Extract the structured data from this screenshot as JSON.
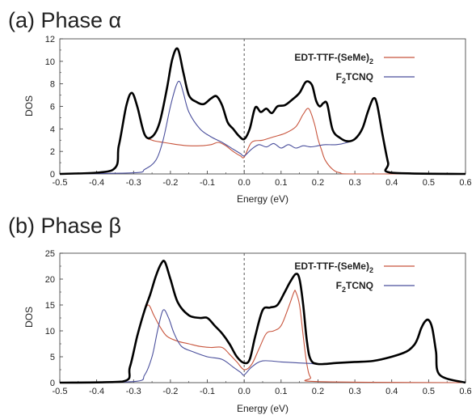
{
  "panels": [
    {
      "title": "(a) Phase α"
    },
    {
      "title": "(b) Phase β"
    }
  ],
  "colors": {
    "total": "#000000",
    "edt": "#c8553d",
    "f2": "#4a4f9c",
    "axis": "#333333",
    "fermi": "#555555"
  },
  "chart_data": [
    {
      "type": "line",
      "title": "(a) Phase α",
      "xlabel": "Energy (eV)",
      "ylabel": "DOS",
      "xlim": [
        -0.5,
        0.6
      ],
      "ylim": [
        0,
        12
      ],
      "xticks": [
        -0.5,
        -0.4,
        -0.3,
        -0.2,
        -0.1,
        0.0,
        0.1,
        0.2,
        0.3,
        0.4,
        0.5,
        0.6
      ],
      "xtick_labels": [
        "-0.5",
        "-0.4",
        "-0.3",
        "-0.2",
        "-0.1",
        "0.0",
        "0.1",
        "0.2",
        "0.3",
        "0.4",
        "0.5",
        "0.6"
      ],
      "yticks": [
        0,
        2,
        4,
        6,
        8,
        10,
        12
      ],
      "fermi_line_x": 0.0,
      "legend": [
        {
          "label_main": "EDT-TTF-(SeMe)",
          "label_sub": "2",
          "series": "EDT-TTF-(SeMe)2"
        },
        {
          "label_pre": "F",
          "label_sub": "2",
          "label_main": "TCNQ",
          "series": "F2TCNQ"
        }
      ],
      "series": [
        {
          "name": "Total",
          "color": "#000000",
          "x": [
            -0.5,
            -0.36,
            -0.34,
            -0.32,
            -0.305,
            -0.29,
            -0.27,
            -0.25,
            -0.23,
            -0.21,
            -0.195,
            -0.18,
            -0.165,
            -0.15,
            -0.13,
            -0.11,
            -0.09,
            -0.075,
            -0.06,
            -0.045,
            -0.03,
            -0.015,
            0.0,
            0.015,
            0.03,
            0.045,
            0.06,
            0.075,
            0.09,
            0.11,
            0.13,
            0.15,
            0.165,
            0.175,
            0.185,
            0.195,
            0.205,
            0.215,
            0.225,
            0.24,
            0.26,
            0.28,
            0.3,
            0.32,
            0.335,
            0.35,
            0.36,
            0.375,
            0.39,
            0.4,
            0.6
          ],
          "y": [
            0,
            0.3,
            2.5,
            6.0,
            7.2,
            6.0,
            3.5,
            3.3,
            4.5,
            7.5,
            10.2,
            11.1,
            9.0,
            7.0,
            6.4,
            6.2,
            6.7,
            6.9,
            6.1,
            4.6,
            4.0,
            3.4,
            3.1,
            4.0,
            5.9,
            5.5,
            5.8,
            5.4,
            6.0,
            6.1,
            6.6,
            7.2,
            8.1,
            8.2,
            7.8,
            6.5,
            6.0,
            6.3,
            6.2,
            3.9,
            3.2,
            2.9,
            3.1,
            4.0,
            5.5,
            6.7,
            6.2,
            3.5,
            1.0,
            0.1,
            0
          ]
        },
        {
          "name": "EDT-TTF-(SeMe)2",
          "color": "#c8553d",
          "x": [
            -0.5,
            -0.36,
            -0.34,
            -0.32,
            -0.305,
            -0.29,
            -0.27,
            -0.25,
            -0.22,
            -0.2,
            -0.18,
            -0.15,
            -0.12,
            -0.09,
            -0.07,
            -0.05,
            -0.03,
            -0.01,
            0.0,
            0.02,
            0.05,
            0.08,
            0.11,
            0.14,
            0.16,
            0.175,
            0.19,
            0.2,
            0.21,
            0.22,
            0.24,
            0.26,
            0.3,
            0.6
          ],
          "y": [
            0,
            0.3,
            2.5,
            6.0,
            7.2,
            6.0,
            3.5,
            3.0,
            2.8,
            2.7,
            2.6,
            2.5,
            2.5,
            2.6,
            2.8,
            2.5,
            2.0,
            1.6,
            1.5,
            2.8,
            3.0,
            3.3,
            3.6,
            4.2,
            5.3,
            5.8,
            4.5,
            3.1,
            2.1,
            1.2,
            0.4,
            0.1,
            0,
            0
          ]
        },
        {
          "name": "F2TCNQ",
          "color": "#4a4f9c",
          "x": [
            -0.5,
            -0.3,
            -0.27,
            -0.24,
            -0.22,
            -0.2,
            -0.185,
            -0.175,
            -0.165,
            -0.15,
            -0.12,
            -0.09,
            -0.06,
            -0.03,
            -0.01,
            0.0,
            0.02,
            0.04,
            0.06,
            0.08,
            0.1,
            0.12,
            0.14,
            0.16,
            0.18,
            0.2,
            0.22,
            0.25,
            0.28,
            0.3,
            0.32,
            0.335,
            0.35,
            0.36,
            0.375,
            0.39,
            0.4,
            0.6
          ],
          "y": [
            0,
            0.1,
            0.4,
            1.2,
            3.0,
            6.0,
            7.8,
            8.2,
            7.2,
            5.5,
            4.0,
            3.3,
            2.8,
            2.2,
            1.8,
            1.6,
            2.2,
            2.6,
            2.4,
            2.7,
            2.3,
            2.6,
            2.3,
            2.5,
            2.4,
            2.5,
            2.6,
            2.6,
            2.8,
            3.1,
            4.0,
            5.5,
            6.7,
            6.2,
            3.5,
            1.0,
            0.1,
            0
          ]
        }
      ]
    },
    {
      "type": "line",
      "title": "(b) Phase β",
      "xlabel": "Energy (eV)",
      "ylabel": "DOS",
      "xlim": [
        -0.5,
        0.6
      ],
      "ylim": [
        0,
        25
      ],
      "xticks": [
        -0.5,
        -0.4,
        -0.3,
        -0.2,
        -0.1,
        0.0,
        0.1,
        0.2,
        0.3,
        0.4,
        0.5,
        0.6
      ],
      "xtick_labels": [
        "-0.5",
        "-0.4",
        "-0.3",
        "-0.2",
        "-0.1",
        "0.0",
        "0.1",
        "0.2",
        "0.3",
        "0.4",
        "0.5",
        "0.6"
      ],
      "yticks": [
        0,
        5,
        10,
        15,
        20,
        25
      ],
      "fermi_line_x": 0.0,
      "legend": [
        {
          "label_main": "EDT-TTF-(SeMe)",
          "label_sub": "2",
          "series": "EDT-TTF-(SeMe)2"
        },
        {
          "label_pre": "F",
          "label_sub": "2",
          "label_main": "TCNQ",
          "series": "F2TCNQ"
        }
      ],
      "series": [
        {
          "name": "Total",
          "color": "#000000",
          "x": [
            -0.5,
            -0.33,
            -0.31,
            -0.29,
            -0.27,
            -0.255,
            -0.24,
            -0.225,
            -0.215,
            -0.2,
            -0.18,
            -0.15,
            -0.12,
            -0.1,
            -0.08,
            -0.06,
            -0.04,
            -0.02,
            0.0,
            0.015,
            0.03,
            0.05,
            0.07,
            0.09,
            0.11,
            0.125,
            0.14,
            0.15,
            0.16,
            0.17,
            0.18,
            0.2,
            0.25,
            0.3,
            0.35,
            0.4,
            0.44,
            0.46,
            0.47,
            0.48,
            0.49,
            0.5,
            0.51,
            0.52,
            0.53,
            0.6
          ],
          "y": [
            0,
            0.2,
            3.0,
            9.0,
            14.0,
            17.0,
            20.5,
            23.0,
            23.3,
            20.0,
            15.5,
            13.0,
            12.5,
            12.5,
            11.0,
            9.5,
            7.5,
            5.0,
            3.8,
            4.5,
            9.0,
            14.0,
            14.5,
            15.0,
            17.5,
            19.5,
            21.0,
            20.0,
            15.0,
            8.0,
            4.5,
            3.6,
            3.8,
            4.0,
            4.2,
            5.0,
            6.0,
            7.2,
            8.5,
            10.5,
            11.8,
            12.1,
            10.5,
            6.0,
            1.5,
            0
          ]
        },
        {
          "name": "EDT-TTF-(SeMe)2",
          "color": "#c8553d",
          "x": [
            -0.5,
            -0.33,
            -0.31,
            -0.29,
            -0.275,
            -0.26,
            -0.245,
            -0.23,
            -0.21,
            -0.18,
            -0.15,
            -0.12,
            -0.09,
            -0.06,
            -0.04,
            -0.02,
            0.0,
            0.02,
            0.04,
            0.06,
            0.08,
            0.1,
            0.12,
            0.135,
            0.14,
            0.15,
            0.16,
            0.17,
            0.18,
            0.2,
            0.6
          ],
          "y": [
            0,
            0.2,
            3.0,
            9.0,
            13.0,
            15.0,
            13.0,
            11.0,
            9.0,
            8.0,
            7.5,
            7.0,
            6.8,
            6.8,
            5.5,
            4.0,
            2.5,
            3.5,
            6.5,
            9.5,
            10.0,
            11.0,
            14.5,
            17.5,
            17.5,
            15.0,
            9.0,
            3.5,
            1.0,
            0.2,
            0
          ]
        },
        {
          "name": "F2TCNQ",
          "color": "#4a4f9c",
          "x": [
            -0.5,
            -0.3,
            -0.27,
            -0.25,
            -0.235,
            -0.22,
            -0.205,
            -0.19,
            -0.17,
            -0.14,
            -0.1,
            -0.06,
            -0.03,
            -0.01,
            0.0,
            0.02,
            0.05,
            0.1,
            0.15,
            0.18,
            0.2,
            0.25,
            0.3,
            0.35,
            0.4,
            0.44,
            0.46,
            0.47,
            0.48,
            0.49,
            0.5,
            0.51,
            0.52,
            0.53,
            0.6
          ],
          "y": [
            0,
            0.2,
            1.5,
            5.0,
            10.0,
            14.0,
            12.5,
            9.5,
            7.0,
            6.0,
            5.0,
            4.5,
            3.0,
            2.0,
            1.5,
            3.0,
            4.2,
            4.0,
            3.8,
            3.7,
            3.6,
            3.8,
            4.0,
            4.2,
            5.0,
            6.0,
            7.2,
            8.5,
            10.5,
            11.8,
            12.1,
            10.5,
            6.0,
            1.5,
            0
          ]
        }
      ]
    }
  ]
}
